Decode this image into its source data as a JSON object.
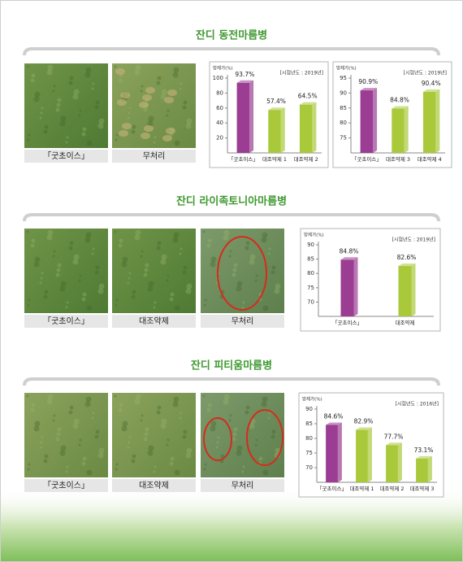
{
  "sections": [
    {
      "title": "잔디 동전마름병",
      "photos": [
        "「굿초이스」",
        "무처리"
      ]
    },
    {
      "title": "잔디 라이족토니아마름병",
      "photos": [
        "「굿초이스」",
        "대조약제",
        "무처리"
      ]
    },
    {
      "title": "잔디 피티움마름병",
      "photos": [
        "「굿초이스」",
        "대조약제",
        "무처리"
      ]
    }
  ],
  "chart_data": [
    {
      "type": "bar",
      "y_label": "방제가(%)",
      "note": "[시험년도 : 2019년]",
      "categories": [
        "「굿초이스」",
        "대조약제 1",
        "대조약제 2"
      ],
      "values": [
        93.7,
        57.4,
        64.5
      ],
      "value_labels": [
        "93.7%",
        "57.4%",
        "64.5%"
      ],
      "colors": [
        "#9b3d93",
        "#a9c93b",
        "#a9c93b"
      ],
      "ylim": [
        0,
        100
      ],
      "yticks": [
        20,
        40,
        60,
        80,
        100
      ]
    },
    {
      "type": "bar",
      "y_label": "방제가(%)",
      "note": "[시험년도 : 2019년]",
      "categories": [
        "「굿초이스」",
        "대조약제 3",
        "대조약제 4"
      ],
      "values": [
        90.9,
        84.8,
        90.4
      ],
      "value_labels": [
        "90.9%",
        "84.8%",
        "90.4%"
      ],
      "colors": [
        "#9b3d93",
        "#a9c93b",
        "#a9c93b"
      ],
      "ylim": [
        70,
        95
      ],
      "yticks": [
        75,
        80,
        85,
        90,
        95
      ]
    },
    {
      "type": "bar",
      "y_label": "방제가(%)",
      "note": "[시험년도 : 2019년]",
      "categories": [
        "「굿초이스」",
        "대조약제"
      ],
      "values": [
        84.8,
        82.6
      ],
      "value_labels": [
        "84.8%",
        "82.6%"
      ],
      "colors": [
        "#9b3d93",
        "#a9c93b"
      ],
      "ylim": [
        65,
        90
      ],
      "yticks": [
        70,
        75,
        80,
        85,
        90
      ]
    },
    {
      "type": "bar",
      "y_label": "방제가(%)",
      "note": "[시험년도 : 2016년]",
      "categories": [
        "「굿초이스」",
        "대조약제 1",
        "대조약제 2",
        "대조약제 3"
      ],
      "values": [
        84.6,
        82.9,
        77.7,
        73.1
      ],
      "value_labels": [
        "84.6%",
        "82.9%",
        "77.7%",
        "73.1%"
      ],
      "colors": [
        "#9b3d93",
        "#a9c93b",
        "#a9c93b",
        "#a9c93b"
      ],
      "ylim": [
        65,
        90
      ],
      "yticks": [
        70,
        75,
        80,
        85,
        90
      ]
    }
  ]
}
